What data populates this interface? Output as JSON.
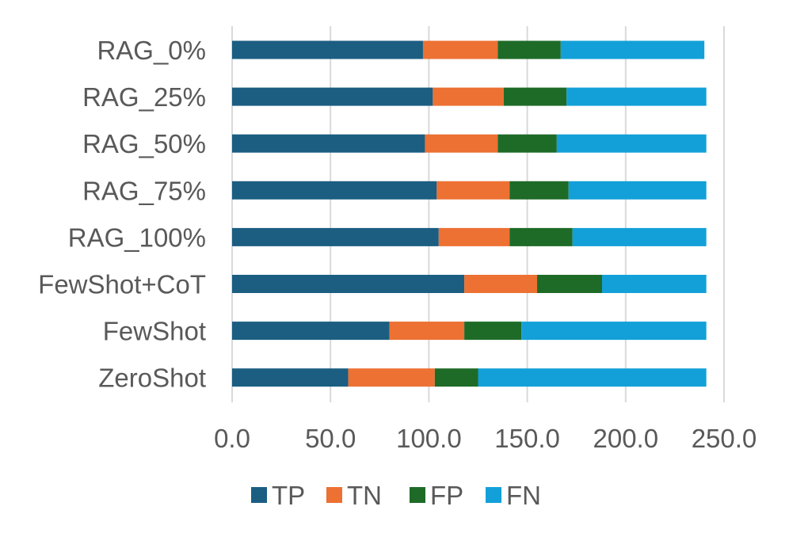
{
  "chart_data": {
    "type": "bar",
    "orientation": "horizontal",
    "stacked": true,
    "categories": [
      "RAG_0%",
      "RAG_25%",
      "RAG_50%",
      "RAG_75%",
      "RAG_100%",
      "FewShot+CoT",
      "FewShot",
      "ZeroShot"
    ],
    "series": [
      {
        "name": "TP",
        "color": "#1b5e82",
        "values": [
          97,
          102,
          98,
          104,
          105,
          118,
          80,
          59
        ]
      },
      {
        "name": "TN",
        "color": "#ec7133",
        "values": [
          38,
          36,
          37,
          37,
          36,
          37,
          38,
          44
        ]
      },
      {
        "name": "FP",
        "color": "#1e6b28",
        "values": [
          32,
          32,
          30,
          30,
          32,
          33,
          29,
          22
        ]
      },
      {
        "name": "FN",
        "color": "#13a0d8",
        "values": [
          73,
          71,
          76,
          70,
          68,
          53,
          94,
          116
        ]
      }
    ],
    "x_ticks": [
      "0.0",
      "50.0",
      "100.0",
      "150.0",
      "200.0",
      "250.0"
    ],
    "xlim": [
      0,
      250
    ],
    "grid": "vertical",
    "legend_position": "bottom",
    "title": "",
    "xlabel": "",
    "ylabel": ""
  }
}
